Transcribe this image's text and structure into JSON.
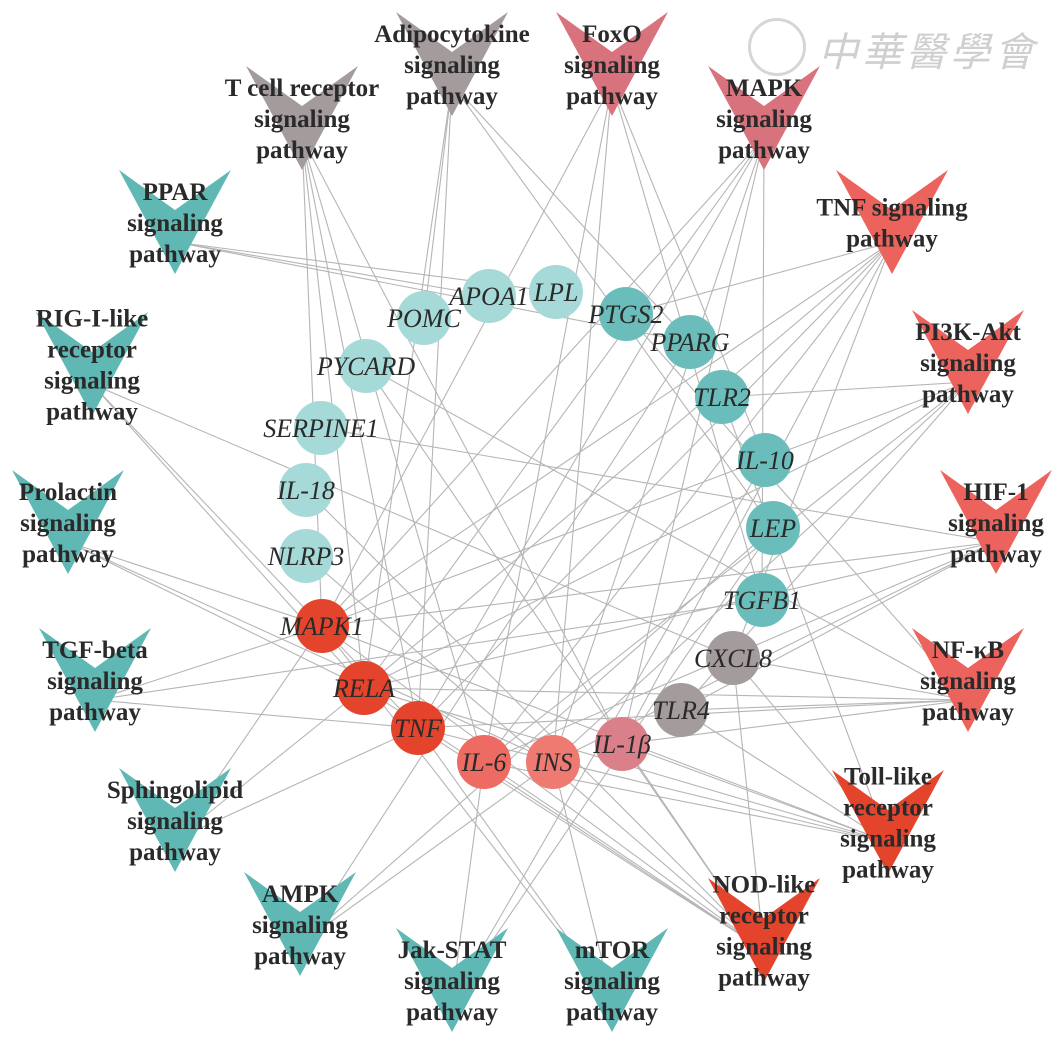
{
  "colors": {
    "teal": "#6bbdbb",
    "teal_light": "#a6dad8",
    "gray": "#a39b9c",
    "red_dark": "#e4442c",
    "red": "#ed6b62",
    "red_soft": "#dd6c74",
    "pink": "#e69aa4",
    "edge": "#b5b5b5"
  },
  "watermark": {
    "text": "中華醫學會"
  },
  "pathways": [
    {
      "id": "tcr",
      "label": [
        "T cell receptor",
        "signaling",
        "pathway"
      ],
      "color": "#a39b9c"
    },
    {
      "id": "adipo",
      "label": [
        "Adipocytokine",
        "signaling",
        "pathway"
      ],
      "color": "#a39b9c"
    },
    {
      "id": "foxo",
      "label": [
        "FoxO",
        "signaling",
        "pathway"
      ],
      "color": "#d8737e"
    },
    {
      "id": "mapk",
      "label": [
        "MAPK",
        "signaling",
        "pathway"
      ],
      "color": "#d8737e"
    },
    {
      "id": "tnfp",
      "label": [
        "TNF signaling",
        "pathway"
      ],
      "color": "#ec625c"
    },
    {
      "id": "pi3k",
      "label": [
        "PI3K-Akt",
        "signaling",
        "pathway"
      ],
      "color": "#ec625c"
    },
    {
      "id": "hif1",
      "label": [
        "HIF-1",
        "signaling",
        "pathway"
      ],
      "color": "#ec625c"
    },
    {
      "id": "nfkb",
      "label": [
        "NF-κB",
        "signaling",
        "pathway"
      ],
      "color": "#ec625c"
    },
    {
      "id": "toll",
      "label": [
        "Toll-like",
        "receptor",
        "signaling",
        "pathway"
      ],
      "color": "#e4442c"
    },
    {
      "id": "nod",
      "label": [
        "NOD-like",
        "receptor",
        "signaling",
        "pathway"
      ],
      "color": "#e4442c"
    },
    {
      "id": "mtor",
      "label": [
        "mTOR",
        "signaling",
        "pathway"
      ],
      "color": "#5fb8b4"
    },
    {
      "id": "jak",
      "label": [
        "Jak-STAT",
        "signaling",
        "pathway"
      ],
      "color": "#5fb8b4"
    },
    {
      "id": "ampk",
      "label": [
        "AMPK",
        "signaling",
        "pathway"
      ],
      "color": "#5fb8b4"
    },
    {
      "id": "sphingo",
      "label": [
        "Sphingolipid",
        "signaling",
        "pathway"
      ],
      "color": "#5fb8b4"
    },
    {
      "id": "tgfb",
      "label": [
        "TGF-beta",
        "signaling",
        "pathway"
      ],
      "color": "#5fb8b4"
    },
    {
      "id": "prolactin",
      "label": [
        "Prolactin",
        "signaling",
        "pathway"
      ],
      "color": "#5fb8b4"
    },
    {
      "id": "rig",
      "label": [
        "RIG-I-like",
        "receptor",
        "signaling",
        "pathway"
      ],
      "color": "#5fb8b4"
    },
    {
      "id": "ppar",
      "label": [
        "PPAR",
        "signaling",
        "pathway"
      ],
      "color": "#5fb8b4"
    }
  ],
  "genes": [
    {
      "id": "LPL",
      "label": "LPL",
      "color": "#a6dad8"
    },
    {
      "id": "APOA1",
      "label": "APOA1",
      "color": "#a6dad8"
    },
    {
      "id": "POMC",
      "label": "POMC",
      "color": "#a6dad8"
    },
    {
      "id": "PYCARD",
      "label": "PYCARD",
      "color": "#a6dad8"
    },
    {
      "id": "SERPINE1",
      "label": "SERPINE1",
      "color": "#a6dad8"
    },
    {
      "id": "IL18",
      "label": "IL-18",
      "color": "#a6dad8"
    },
    {
      "id": "NLRP3",
      "label": "NLRP3",
      "color": "#a6dad8"
    },
    {
      "id": "MAPK1",
      "label": "MAPK1",
      "color": "#e4442c"
    },
    {
      "id": "RELA",
      "label": "RELA",
      "color": "#e4442c"
    },
    {
      "id": "TNF",
      "label": "TNF",
      "color": "#e4442c"
    },
    {
      "id": "IL6",
      "label": "IL-6",
      "color": "#ed6b62"
    },
    {
      "id": "INS",
      "label": "INS",
      "color": "#ee7a72"
    },
    {
      "id": "IL1B",
      "label": "IL-1β",
      "color": "#d9808b"
    },
    {
      "id": "TLR4",
      "label": "TLR4",
      "color": "#a39b9c"
    },
    {
      "id": "CXCL8",
      "label": "CXCL8",
      "color": "#a39b9c"
    },
    {
      "id": "TGFB1",
      "label": "TGFB1",
      "color": "#6bbdbb"
    },
    {
      "id": "LEP",
      "label": "LEP",
      "color": "#6bbdbb"
    },
    {
      "id": "IL10",
      "label": "IL-10",
      "color": "#6bbdbb"
    },
    {
      "id": "TLR2",
      "label": "TLR2",
      "color": "#6bbdbb"
    },
    {
      "id": "PPARG",
      "label": "PPARG",
      "color": "#6bbdbb"
    },
    {
      "id": "PTGS2",
      "label": "PTGS2",
      "color": "#6bbdbb"
    }
  ],
  "edges": [
    [
      "tcr",
      "MAPK1"
    ],
    [
      "tcr",
      "RELA"
    ],
    [
      "tcr",
      "TNF"
    ],
    [
      "tcr",
      "IL6"
    ],
    [
      "tcr",
      "IL1B"
    ],
    [
      "adipo",
      "POMC"
    ],
    [
      "adipo",
      "LEP"
    ],
    [
      "adipo",
      "TNF"
    ],
    [
      "adipo",
      "RELA"
    ],
    [
      "adipo",
      "PPARG"
    ],
    [
      "foxo",
      "MAPK1"
    ],
    [
      "foxo",
      "IL6"
    ],
    [
      "foxo",
      "INS"
    ],
    [
      "foxo",
      "TGFB1"
    ],
    [
      "foxo",
      "IL10"
    ],
    [
      "mapk",
      "MAPK1"
    ],
    [
      "mapk",
      "RELA"
    ],
    [
      "mapk",
      "TNF"
    ],
    [
      "mapk",
      "IL1B"
    ],
    [
      "mapk",
      "TGFB1"
    ],
    [
      "mapk",
      "INS"
    ],
    [
      "tnfp",
      "MAPK1"
    ],
    [
      "tnfp",
      "RELA"
    ],
    [
      "tnfp",
      "TNF"
    ],
    [
      "tnfp",
      "IL6"
    ],
    [
      "tnfp",
      "IL1B"
    ],
    [
      "tnfp",
      "PTGS2"
    ],
    [
      "tnfp",
      "CXCL8"
    ],
    [
      "pi3k",
      "MAPK1"
    ],
    [
      "pi3k",
      "RELA"
    ],
    [
      "pi3k",
      "IL6"
    ],
    [
      "pi3k",
      "INS"
    ],
    [
      "pi3k",
      "TLR2"
    ],
    [
      "pi3k",
      "TLR4"
    ],
    [
      "hif1",
      "MAPK1"
    ],
    [
      "hif1",
      "RELA"
    ],
    [
      "hif1",
      "IL6"
    ],
    [
      "hif1",
      "INS"
    ],
    [
      "hif1",
      "TLR4"
    ],
    [
      "hif1",
      "SERPINE1"
    ],
    [
      "nfkb",
      "RELA"
    ],
    [
      "nfkb",
      "TNF"
    ],
    [
      "nfkb",
      "IL1B"
    ],
    [
      "nfkb",
      "TLR4"
    ],
    [
      "nfkb",
      "CXCL8"
    ],
    [
      "nfkb",
      "PTGS2"
    ],
    [
      "nfkb",
      "PYCARD"
    ],
    [
      "toll",
      "MAPK1"
    ],
    [
      "toll",
      "RELA"
    ],
    [
      "toll",
      "TNF"
    ],
    [
      "toll",
      "IL6"
    ],
    [
      "toll",
      "IL1B"
    ],
    [
      "toll",
      "TLR2"
    ],
    [
      "toll",
      "TLR4"
    ],
    [
      "toll",
      "CXCL8"
    ],
    [
      "nod",
      "MAPK1"
    ],
    [
      "nod",
      "RELA"
    ],
    [
      "nod",
      "TNF"
    ],
    [
      "nod",
      "IL6"
    ],
    [
      "nod",
      "IL1B"
    ],
    [
      "nod",
      "NLRP3"
    ],
    [
      "nod",
      "PYCARD"
    ],
    [
      "nod",
      "IL18"
    ],
    [
      "nod",
      "CXCL8"
    ],
    [
      "mtor",
      "MAPK1"
    ],
    [
      "mtor",
      "INS"
    ],
    [
      "mtor",
      "TNF"
    ],
    [
      "jak",
      "IL6"
    ],
    [
      "jak",
      "IL10"
    ],
    [
      "jak",
      "LEP"
    ],
    [
      "ampk",
      "INS"
    ],
    [
      "ampk",
      "LEP"
    ],
    [
      "ampk",
      "PPARG"
    ],
    [
      "sphingo",
      "MAPK1"
    ],
    [
      "sphingo",
      "RELA"
    ],
    [
      "sphingo",
      "TNF"
    ],
    [
      "tgfb",
      "TGFB1"
    ],
    [
      "tgfb",
      "MAPK1"
    ],
    [
      "tgfb",
      "TNF"
    ],
    [
      "prolactin",
      "MAPK1"
    ],
    [
      "prolactin",
      "RELA"
    ],
    [
      "prolactin",
      "INS"
    ],
    [
      "rig",
      "RELA"
    ],
    [
      "rig",
      "TNF"
    ],
    [
      "rig",
      "CXCL8"
    ],
    [
      "ppar",
      "LPL"
    ],
    [
      "ppar",
      "APOA1"
    ],
    [
      "ppar",
      "PPARG"
    ]
  ]
}
